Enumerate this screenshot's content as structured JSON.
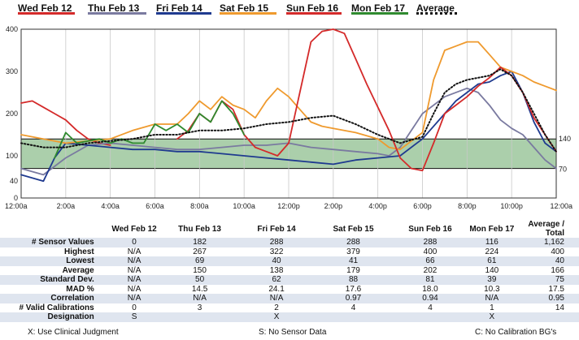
{
  "legend": [
    {
      "label": "Wed Feb 12",
      "color": "#d42a2a",
      "style": "solid"
    },
    {
      "label": "Thu Feb 13",
      "color": "#7a7aa0",
      "style": "solid"
    },
    {
      "label": "Fri Feb 14",
      "color": "#1f3a8f",
      "style": "solid"
    },
    {
      "label": "Sat Feb 15",
      "color": "#ef9a2e",
      "style": "solid"
    },
    {
      "label": "Sun Feb 16",
      "color": "#d42a2a",
      "style": "solid"
    },
    {
      "label": "Mon Feb 17",
      "color": "#2f8a2f",
      "style": "solid"
    },
    {
      "label": "Average",
      "color": "#111111",
      "style": "dotted"
    }
  ],
  "chart_data": {
    "type": "line",
    "x_unit": "hours since 12:00a",
    "xlim": [
      0,
      24
    ],
    "ylim": [
      0,
      400
    ],
    "y_ticks": [
      0,
      40,
      100,
      200,
      300,
      400
    ],
    "x_tick_labels": [
      "12:00a",
      "2:00a",
      "4:00a",
      "6:00a",
      "8:00a",
      "10:00a",
      "12:00p",
      "2:00p",
      "4:00p",
      "6:00p",
      "8:00p",
      "10:00p",
      "12:00a"
    ],
    "target_range": [
      70,
      140
    ],
    "target_labels": [
      "140",
      "70"
    ],
    "target_color": "#8fbf8f",
    "grid": "vertical",
    "series": [
      {
        "name": "Wed Feb 12",
        "color": "#d42a2a",
        "x": [
          0,
          0.5,
          1,
          1.5,
          2,
          2.5,
          3,
          3.5,
          4
        ],
        "y": [
          225,
          230,
          215,
          200,
          185,
          160,
          140,
          130,
          125
        ]
      },
      {
        "name": "Thu Feb 13",
        "color": "#7a7aa0",
        "x": [
          0,
          1,
          2,
          3,
          4,
          5,
          6,
          7,
          8,
          9,
          10,
          11,
          12,
          13,
          14,
          15,
          16,
          16.5,
          17,
          17.5,
          18,
          19,
          20,
          20.5,
          21,
          21.5,
          22,
          22.5,
          23,
          23.5,
          24
        ],
        "y": [
          70,
          55,
          95,
          125,
          130,
          125,
          120,
          115,
          115,
          120,
          125,
          125,
          130,
          120,
          115,
          110,
          105,
          100,
          120,
          160,
          200,
          240,
          260,
          250,
          220,
          185,
          165,
          150,
          120,
          90,
          70
        ]
      },
      {
        "name": "Fri Feb 14",
        "color": "#1f3a8f",
        "x": [
          0,
          1,
          1.5,
          2,
          3,
          4,
          5,
          6,
          7,
          8,
          9,
          10,
          11,
          12,
          13,
          14,
          15,
          16,
          17,
          18,
          19,
          19.5,
          20,
          20.5,
          21,
          21.5,
          22,
          22.5,
          23,
          23.5,
          24
        ],
        "y": [
          55,
          40,
          95,
          130,
          125,
          120,
          115,
          115,
          110,
          110,
          105,
          100,
          95,
          90,
          85,
          80,
          90,
          95,
          100,
          140,
          200,
          230,
          250,
          270,
          275,
          290,
          300,
          250,
          180,
          130,
          110
        ]
      },
      {
        "name": "Sat Feb 15",
        "color": "#ef9a2e",
        "x": [
          0,
          1,
          2,
          3,
          4,
          5,
          6,
          7,
          7.5,
          8,
          8.5,
          9,
          9.5,
          10,
          10.5,
          11,
          11.5,
          12,
          12.5,
          13,
          13.5,
          14,
          15,
          16,
          16.5,
          17,
          18,
          18.5,
          19,
          19.5,
          20,
          20.5,
          21,
          21.5,
          22,
          22.5,
          23,
          23.5,
          24
        ],
        "y": [
          150,
          140,
          130,
          135,
          140,
          160,
          175,
          175,
          200,
          230,
          210,
          240,
          220,
          210,
          190,
          230,
          260,
          240,
          210,
          180,
          170,
          165,
          155,
          140,
          120,
          115,
          155,
          280,
          350,
          360,
          370,
          370,
          340,
          310,
          300,
          290,
          275,
          265,
          255
        ]
      },
      {
        "name": "Sun Feb 16",
        "color": "#d42a2a",
        "x": [
          7,
          7.5,
          8,
          8.5,
          9,
          9.5,
          10,
          10.5,
          11,
          11.5,
          12,
          12.5,
          13,
          13.5,
          14,
          14.5,
          15,
          15.5,
          16,
          16.5,
          17,
          17.5,
          18,
          18.5,
          19,
          19.5,
          20,
          20.5,
          21,
          21.5,
          22,
          22.5,
          23,
          23.5,
          24
        ],
        "y": [
          140,
          160,
          200,
          180,
          230,
          210,
          150,
          120,
          110,
          100,
          130,
          250,
          370,
          395,
          400,
          390,
          330,
          270,
          215,
          160,
          95,
          70,
          65,
          130,
          200,
          220,
          240,
          265,
          285,
          310,
          290,
          250,
          190,
          150,
          110
        ]
      },
      {
        "name": "Mon Feb 17",
        "color": "#2f8a2f",
        "x": [
          1.5,
          2,
          2.5,
          3,
          3.5,
          4,
          4.5,
          5,
          5.5,
          6,
          6.5,
          7,
          7.5,
          8,
          8.5,
          9,
          9.5,
          10
        ],
        "y": [
          95,
          155,
          130,
          135,
          140,
          130,
          140,
          130,
          130,
          175,
          160,
          175,
          155,
          200,
          180,
          230,
          200,
          150
        ]
      },
      {
        "name": "Average",
        "color": "#111111",
        "dotted": true,
        "x": [
          0,
          1,
          2,
          3,
          4,
          5,
          6,
          7,
          8,
          9,
          10,
          11,
          12,
          13,
          14,
          15,
          16,
          17,
          18,
          18.5,
          19,
          19.5,
          20,
          20.5,
          21,
          21.5,
          22,
          22.5,
          23,
          23.5,
          24
        ],
        "y": [
          130,
          120,
          120,
          130,
          135,
          140,
          150,
          150,
          160,
          160,
          165,
          175,
          180,
          190,
          195,
          175,
          150,
          130,
          145,
          200,
          250,
          270,
          280,
          285,
          290,
          305,
          290,
          250,
          200,
          150,
          110
        ]
      }
    ]
  },
  "table": {
    "headers": [
      "",
      "Wed Feb 12",
      "Thu Feb 13",
      "Fri Feb 14",
      "Sat Feb 15",
      "Sun Feb 16",
      "Mon Feb 17",
      "Average / Total"
    ],
    "rows": [
      [
        "# Sensor Values",
        "0",
        "182",
        "288",
        "288",
        "288",
        "116",
        "1,162"
      ],
      [
        "Highest",
        "N/A",
        "267",
        "322",
        "379",
        "400",
        "224",
        "400"
      ],
      [
        "Lowest",
        "N/A",
        "69",
        "40",
        "41",
        "66",
        "61",
        "40"
      ],
      [
        "Average",
        "N/A",
        "150",
        "138",
        "179",
        "202",
        "140",
        "166"
      ],
      [
        "Standard Dev.",
        "N/A",
        "50",
        "62",
        "88",
        "81",
        "39",
        "75"
      ],
      [
        "MAD %",
        "N/A",
        "14.5",
        "24.1",
        "17.6",
        "18.0",
        "10.3",
        "17.5"
      ],
      [
        "Correlation",
        "N/A",
        "N/A",
        "N/A",
        "0.97",
        "0.94",
        "N/A",
        "0.95"
      ],
      [
        "# Valid Calibrations",
        "0",
        "3",
        "2",
        "4",
        "4",
        "1",
        "14"
      ],
      [
        "Designation",
        "S",
        "",
        "X",
        "",
        "",
        "X",
        ""
      ]
    ]
  },
  "footer": {
    "left": "X: Use Clinical Judgment",
    "middle": "S: No Sensor Data",
    "right": "C: No Calibration BG's"
  }
}
